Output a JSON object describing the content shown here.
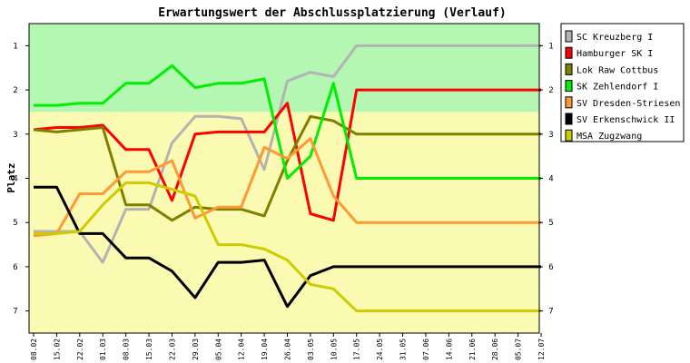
{
  "chart_data": {
    "type": "line",
    "title": "Erwartungswert der Abschlussplatzierung (Verlauf)",
    "ylabel": "Platz",
    "xlabel": "",
    "ylim": [
      0.5,
      7.5
    ],
    "y_inverted": true,
    "yticks": [
      1,
      2,
      3,
      4,
      5,
      6,
      7
    ],
    "grid": false,
    "legend_position": "right",
    "bands": [
      {
        "from": 0.5,
        "to": 2.5,
        "color": "#b3f7b3"
      },
      {
        "from": 2.5,
        "to": 7.5,
        "color": "#fafab3"
      }
    ],
    "x": [
      "08.02",
      "15.02",
      "22.02",
      "01.03",
      "08.03",
      "15.03",
      "22.03",
      "29.03",
      "05.04",
      "12.04",
      "19.04",
      "26.04",
      "03.05",
      "10.05",
      "17.05",
      "24.05",
      "31.05",
      "07.06",
      "14.06",
      "21.06",
      "28.06",
      "05.07",
      "12.07"
    ],
    "series": [
      {
        "name": "SC Kreuzberg I",
        "color": "#b3b3b3",
        "values": [
          5.2,
          5.2,
          5.2,
          5.9,
          4.7,
          4.7,
          3.2,
          2.6,
          2.6,
          2.65,
          3.8,
          1.8,
          1.6,
          1.7,
          1.0,
          1.0,
          1.0,
          1.0,
          1.0,
          1.0,
          1.0,
          1.0,
          1.0
        ]
      },
      {
        "name": "Hamburger SK I",
        "color": "#ff0000",
        "values": [
          2.9,
          2.85,
          2.85,
          2.8,
          3.35,
          3.35,
          4.5,
          3.0,
          2.95,
          2.95,
          2.95,
          2.3,
          4.8,
          4.95,
          2.0,
          2.0,
          2.0,
          2.0,
          2.0,
          2.0,
          2.0,
          2.0,
          2.0
        ]
      },
      {
        "name": "Lok Raw Cottbus",
        "color": "#7f7f00",
        "values": [
          2.9,
          2.95,
          2.9,
          2.85,
          4.6,
          4.6,
          4.95,
          4.65,
          4.7,
          4.7,
          4.85,
          3.6,
          2.6,
          2.7,
          3.0,
          3.0,
          3.0,
          3.0,
          3.0,
          3.0,
          3.0,
          3.0,
          3.0
        ]
      },
      {
        "name": "SK Zehlendorf I",
        "color": "#00ee00",
        "values": [
          2.35,
          2.35,
          2.3,
          2.3,
          1.85,
          1.85,
          1.45,
          1.95,
          1.85,
          1.85,
          1.75,
          4.0,
          3.5,
          1.85,
          4.0,
          4.0,
          4.0,
          4.0,
          4.0,
          4.0,
          4.0,
          4.0,
          4.0
        ]
      },
      {
        "name": "SV Dresden-Striesen",
        "color": "#ff9933",
        "values": [
          5.3,
          5.25,
          4.35,
          4.35,
          3.85,
          3.85,
          3.6,
          4.9,
          4.65,
          4.65,
          3.3,
          3.55,
          3.1,
          4.4,
          5.0,
          5.0,
          5.0,
          5.0,
          5.0,
          5.0,
          5.0,
          5.0,
          5.0
        ]
      },
      {
        "name": "SV Erkenschwick II",
        "color": "#000000",
        "values": [
          4.2,
          4.2,
          5.25,
          5.25,
          5.8,
          5.8,
          6.1,
          6.7,
          5.9,
          5.9,
          5.85,
          6.9,
          6.2,
          6.0,
          6.0,
          6.0,
          6.0,
          6.0,
          6.0,
          6.0,
          6.0,
          6.0,
          6.0
        ]
      },
      {
        "name": "MSA Zugzwang",
        "color": "#cccc00",
        "values": [
          5.25,
          5.25,
          5.2,
          4.6,
          4.1,
          4.1,
          4.25,
          4.4,
          5.5,
          5.5,
          5.6,
          5.85,
          6.4,
          6.5,
          7.0,
          7.0,
          7.0,
          7.0,
          7.0,
          7.0,
          7.0,
          7.0,
          7.0
        ]
      }
    ]
  }
}
